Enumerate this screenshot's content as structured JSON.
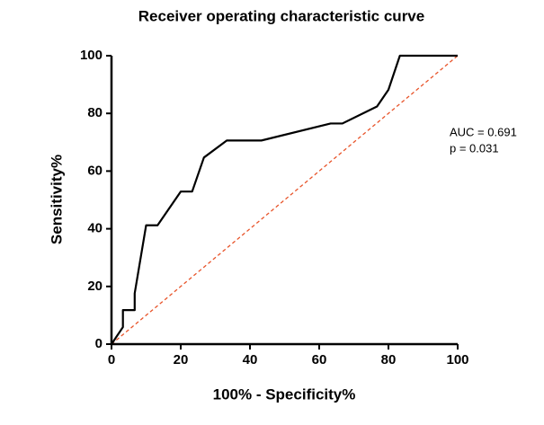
{
  "chart_data": {
    "type": "line",
    "title": "Receiver operating characteristic curve",
    "x_label": "100% - Specificity%",
    "y_label": "Sensitivity%",
    "annotations": [
      "AUC = 0.691",
      "p = 0.031"
    ],
    "series": [
      {
        "name": "ROC",
        "color": "#000000",
        "x": [
          0,
          3.3,
          3.3,
          6.7,
          6.7,
          10,
          13.3,
          20,
          23.3,
          26.7,
          33.3,
          43.3,
          63.3,
          66.7,
          76.7,
          80,
          83.3,
          100
        ],
        "values": [
          0,
          5.9,
          11.8,
          11.8,
          17.6,
          41.2,
          41.2,
          52.9,
          52.9,
          64.7,
          70.6,
          70.6,
          76.5,
          76.5,
          82.4,
          88.2,
          100,
          100
        ]
      }
    ],
    "reference_line": {
      "color": "#e8542a",
      "x": [
        0,
        100
      ],
      "values": [
        0,
        100
      ]
    },
    "xlim": [
      0,
      100
    ],
    "xticks": [
      0,
      20,
      40,
      60,
      80,
      100
    ],
    "ylim": [
      0,
      100
    ],
    "yticks": [
      0,
      20,
      40,
      60,
      80,
      100
    ]
  }
}
